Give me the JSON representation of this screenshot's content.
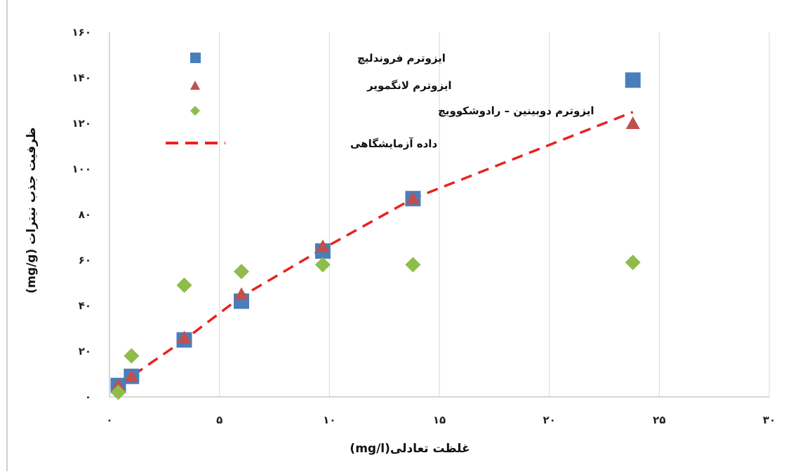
{
  "chart_data": {
    "type": "scatter",
    "title": "",
    "xlabel": "غلظت تعادلی(mg/l)",
    "ylabel": "ظرفیت جذب نیترات (mg/g)",
    "xlim": [
      0,
      30
    ],
    "ylim": [
      0,
      160
    ],
    "x_ticks": [
      0,
      5,
      10,
      15,
      20,
      25,
      30
    ],
    "y_ticks": [
      0,
      20,
      40,
      60,
      80,
      100,
      120,
      140,
      160
    ],
    "x_tick_labels": [
      "۰",
      "۵",
      "۱۰",
      "۱۵",
      "۲۰",
      "۲۵",
      "۳۰"
    ],
    "y_tick_labels": [
      "۰",
      "۲۰",
      "۴۰",
      "۶۰",
      "۸۰",
      "۱۰۰",
      "۱۲۰",
      "۱۴۰",
      "۱۶۰"
    ],
    "grid": "vertical",
    "legend_position": "top-left",
    "series": [
      {
        "name": "ایزوترم فروندلیچ",
        "marker": "square",
        "color": "#4a7ebb",
        "x": [
          0.4,
          1.0,
          3.4,
          6.0,
          9.7,
          13.8,
          23.8
        ],
        "y": [
          5,
          9,
          25,
          42,
          64,
          87,
          139
        ]
      },
      {
        "name": "ایزوترم لانگمویر",
        "marker": "triangle",
        "color": "#c0504d",
        "x": [
          0.4,
          1.0,
          3.4,
          6.0,
          9.7,
          13.8,
          23.8
        ],
        "y": [
          5,
          9,
          26,
          45,
          66,
          87,
          120
        ]
      },
      {
        "name": "ایزوترم دوبینین – رادوشکوویچ",
        "marker": "diamond",
        "color": "#8fbc4a",
        "x": [
          0.4,
          1.0,
          3.4,
          6.0,
          9.7,
          13.8,
          23.8
        ],
        "y": [
          2,
          18,
          49,
          55,
          58,
          58,
          59
        ]
      },
      {
        "name": "داده آزمایشگاهی",
        "marker": "dashed-line",
        "color": "#e8231d",
        "x": [
          0.4,
          1.0,
          3.4,
          6.0,
          9.7,
          13.8,
          23.8
        ],
        "y": [
          5,
          9,
          25,
          44,
          65,
          87,
          125
        ]
      }
    ]
  }
}
